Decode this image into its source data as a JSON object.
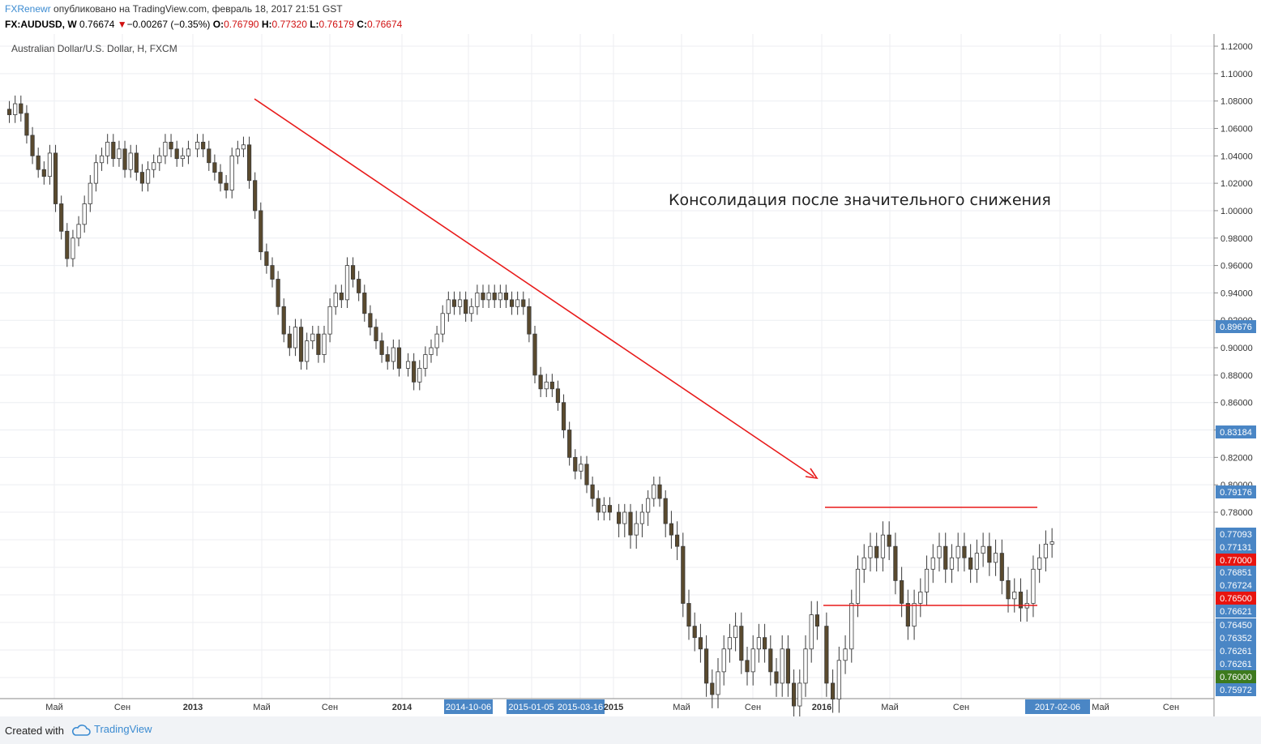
{
  "header": {
    "author": "FXRenewr",
    "published": "опубликовано на TradingView.com, февраль 18, 2017 21:51 GST",
    "symbol": "FX:AUDUSD, W",
    "last": "0.76674",
    "change": "−0.00267 (−0.35%)",
    "o_label": "O:",
    "o_value": "0.76790",
    "h_label": "H:",
    "h_value": "0.77320",
    "l_label": "L:",
    "l_value": "0.76179",
    "c_label": "C:",
    "c_value": "0.76674"
  },
  "footer": {
    "created": "Created with",
    "brand": "TradingView"
  },
  "colors": {
    "up": "#ffffff",
    "down": "#5a4a2e",
    "wick": "#3a3a3a",
    "trend": "#e81a1a",
    "label_blue": "#4a86c5",
    "label_red": "#e8140f",
    "label_green": "#3d7a1e"
  },
  "chart_data": {
    "type": "candlestick",
    "title": "Australian Dollar/U.S. Dollar, H, FXCM",
    "annotation": "Консолидация после значительного снижения",
    "ylim": [
      0.75972,
      1.12
    ],
    "y_ticks": [
      "1.12000",
      "1.10000",
      "1.08000",
      "1.06000",
      "1.04000",
      "1.02000",
      "1.00000",
      "0.98000",
      "0.96000",
      "0.94000",
      "0.92000",
      "0.90000",
      "0.88000",
      "0.86000",
      "0.84000",
      "0.82000",
      "0.80000",
      "0.78000"
    ],
    "x_ticks": [
      "Май",
      "Сен",
      "2013",
      "Май",
      "Сен",
      "2014",
      "2014-10-06",
      "2015-01-05",
      "2015-03-16",
      "2015",
      "Май",
      "Сен",
      "2016",
      "Май",
      "Сен",
      "2017-02-06",
      "Май",
      "Сен"
    ],
    "price_labels": [
      {
        "value": "0.89676",
        "kind": "blue"
      },
      {
        "value": "0.83184",
        "kind": "blue"
      },
      {
        "value": "0.79176",
        "kind": "blue"
      },
      {
        "value": "0.77093",
        "kind": "blue"
      },
      {
        "value": "0.77131",
        "kind": "blue"
      },
      {
        "value": "0.77000",
        "kind": "red"
      },
      {
        "value": "0.76851",
        "kind": "blue"
      },
      {
        "value": "0.76724",
        "kind": "blue"
      },
      {
        "value": "0.76500",
        "kind": "red"
      },
      {
        "value": "0.76621",
        "kind": "blue"
      },
      {
        "value": "0.76450",
        "kind": "blue"
      },
      {
        "value": "0.76352",
        "kind": "blue"
      },
      {
        "value": "0.76261",
        "kind": "blue"
      },
      {
        "value": "0.76261",
        "kind": "blue"
      },
      {
        "value": "0.76000",
        "kind": "green"
      },
      {
        "value": "0.75972",
        "kind": "blue"
      }
    ],
    "series": [
      {
        "segment": "2012",
        "close": [
          1.07,
          1.078,
          1.071,
          1.055,
          1.04,
          1.03,
          1.025,
          1.042,
          1.005,
          0.985,
          0.965,
          0.98,
          0.99,
          1.005,
          1.02,
          1.035,
          1.04,
          1.05,
          1.038,
          1.045,
          1.03,
          1.042,
          1.028,
          1.02,
          1.03,
          1.035,
          1.04,
          1.05,
          1.045,
          1.038,
          1.04,
          1.045
        ]
      },
      {
        "segment": "2013",
        "close": [
          1.05,
          1.045,
          1.035,
          1.028,
          1.02,
          1.015,
          1.04,
          1.045,
          1.048,
          1.022,
          1.0,
          0.97,
          0.96,
          0.95,
          0.93,
          0.91,
          0.9,
          0.915,
          0.89,
          0.905,
          0.91,
          0.895,
          0.91,
          0.93,
          0.94,
          0.935,
          0.96,
          0.95,
          0.94,
          0.925,
          0.915,
          0.905,
          0.895,
          0.89,
          0.9,
          0.885
        ]
      },
      {
        "segment": "2014",
        "close": [
          0.89,
          0.875,
          0.885,
          0.895,
          0.9,
          0.91,
          0.925,
          0.935,
          0.93,
          0.935,
          0.925,
          0.93,
          0.94,
          0.935,
          0.94,
          0.935,
          0.94,
          0.935,
          0.93,
          0.935,
          0.93,
          0.91,
          0.88,
          0.87,
          0.875,
          0.87,
          0.86,
          0.84,
          0.82,
          0.81,
          0.815,
          0.8,
          0.79,
          0.78,
          0.785,
          0.78
        ]
      },
      {
        "segment": "2015",
        "close": [
          0.775,
          0.78,
          0.77,
          0.775,
          0.78,
          0.79,
          0.8,
          0.79,
          0.775,
          0.77,
          0.765,
          0.74,
          0.73,
          0.725,
          0.72,
          0.705,
          0.7,
          0.71,
          0.72,
          0.725,
          0.73,
          0.715,
          0.71,
          0.72,
          0.725,
          0.72,
          0.71,
          0.705,
          0.72,
          0.705,
          0.695,
          0.705,
          0.72,
          0.735,
          0.73
        ]
      },
      {
        "segment": "2016",
        "close": [
          0.705,
          0.698,
          0.715,
          0.72,
          0.74,
          0.755,
          0.76,
          0.765,
          0.76,
          0.77,
          0.765,
          0.75,
          0.74,
          0.73,
          0.74,
          0.745,
          0.755,
          0.76,
          0.765,
          0.755,
          0.76,
          0.765,
          0.76,
          0.755,
          0.762,
          0.765,
          0.758,
          0.762,
          0.75,
          0.742,
          0.745,
          0.738,
          0.74,
          0.755,
          0.76,
          0.766,
          0.767
        ]
      }
    ]
  }
}
